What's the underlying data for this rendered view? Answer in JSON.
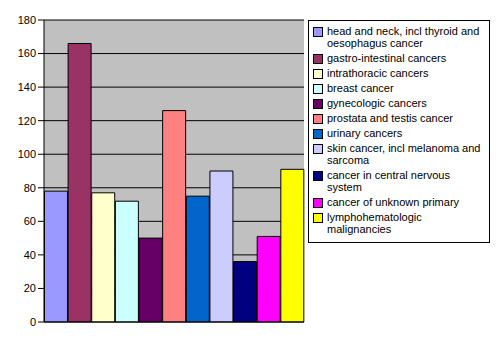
{
  "chart_data": {
    "type": "bar",
    "categories": [
      "head and neck, incl thyroid and oesophagus cancer",
      "gastro-intestinal cancers",
      "intrathoracic cancers",
      "breast cancer",
      "gynecologic cancers",
      "prostata and testis cancer",
      "urinary cancers",
      "skin cancer, incl melanoma and sarcoma",
      "cancer in central nervous system",
      "cancer of unknown primary",
      "lymphohematologic malignancies"
    ],
    "values": [
      78,
      166,
      77,
      72,
      50,
      126,
      75,
      90,
      36,
      51,
      91
    ],
    "colors": [
      "#9999FF",
      "#993366",
      "#FFFFCC",
      "#CCFFFF",
      "#660066",
      "#FF8080",
      "#0066CC",
      "#CCCCFF",
      "#000080",
      "#FF00FF",
      "#FFFF00"
    ],
    "ylim": [
      0,
      180
    ],
    "yticks": [
      0,
      20,
      40,
      60,
      80,
      100,
      120,
      140,
      160,
      180
    ],
    "grid": true,
    "legend": "right",
    "tick_labels": "y"
  }
}
